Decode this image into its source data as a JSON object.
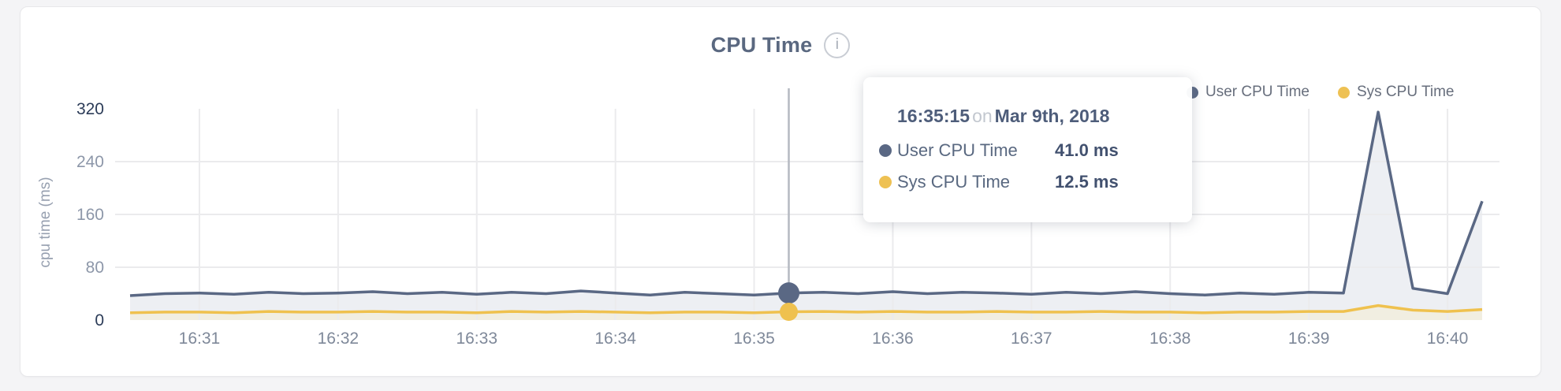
{
  "header": {
    "title": "CPU Time",
    "info_icon": "i"
  },
  "legend": {
    "items": [
      {
        "label": "User CPU Time",
        "color": "#5a6884"
      },
      {
        "label": "Sys CPU Time",
        "color": "#eec153"
      }
    ]
  },
  "tooltip": {
    "time": "16:35:15",
    "connector": "on",
    "date": "Mar 9th, 2018",
    "rows": [
      {
        "label": "User CPU Time",
        "value": "41.0 ms",
        "color": "#5a6884"
      },
      {
        "label": "Sys CPU Time",
        "value": "12.5 ms",
        "color": "#eec153"
      }
    ]
  },
  "chart_data": {
    "type": "area",
    "title": "CPU Time",
    "xlabel": "",
    "ylabel": "cpu time (ms)",
    "ylim": [
      0,
      320
    ],
    "yticks": [
      0,
      80,
      160,
      240,
      320
    ],
    "grid_yticks": [
      80,
      160,
      240
    ],
    "x_tick_labels": [
      "16:31",
      "16:32",
      "16:33",
      "16:34",
      "16:35",
      "16:36",
      "16:37",
      "16:38",
      "16:39",
      "16:40"
    ],
    "grid": true,
    "legend_position": "top-right",
    "x": [
      "16:30:30",
      "16:30:45",
      "16:31:00",
      "16:31:15",
      "16:31:30",
      "16:31:45",
      "16:32:00",
      "16:32:15",
      "16:32:30",
      "16:32:45",
      "16:33:00",
      "16:33:15",
      "16:33:30",
      "16:33:45",
      "16:34:00",
      "16:34:15",
      "16:34:30",
      "16:34:45",
      "16:35:00",
      "16:35:15",
      "16:35:30",
      "16:35:45",
      "16:36:00",
      "16:36:15",
      "16:36:30",
      "16:36:45",
      "16:37:00",
      "16:37:15",
      "16:37:30",
      "16:37:45",
      "16:38:00",
      "16:38:15",
      "16:38:30",
      "16:38:45",
      "16:39:00",
      "16:39:15",
      "16:39:30",
      "16:39:45",
      "16:40:00",
      "16:40:15"
    ],
    "series": [
      {
        "name": "User CPU Time",
        "color": "#5a6884",
        "fill": "#edeff3",
        "values": [
          37,
          40,
          41,
          39,
          42,
          40,
          41,
          43,
          40,
          42,
          39,
          42,
          40,
          44,
          41,
          38,
          42,
          40,
          38,
          41,
          42,
          40,
          43,
          40,
          42,
          41,
          39,
          42,
          40,
          43,
          40,
          38,
          41,
          39,
          42,
          41,
          315,
          48,
          40,
          180
        ]
      },
      {
        "name": "Sys CPU Time",
        "color": "#efc14e",
        "fill": "#f1eee1",
        "values": [
          11,
          12,
          12,
          11,
          13,
          12,
          12,
          13,
          12,
          12,
          11,
          13,
          12,
          13,
          12,
          11,
          12,
          12,
          11,
          12.5,
          13,
          12,
          13,
          12,
          12,
          13,
          12,
          12,
          13,
          12,
          12,
          11,
          12,
          12,
          13,
          13,
          22,
          15,
          13,
          16
        ]
      }
    ],
    "hover": {
      "x": "16:35:15",
      "values": [
        41.0,
        12.5
      ]
    }
  }
}
